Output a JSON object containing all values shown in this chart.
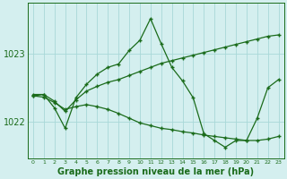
{
  "title": "Graphe pression niveau de la mer (hPa)",
  "x_labels": [
    "0",
    "1",
    "2",
    "3",
    "4",
    "5",
    "6",
    "7",
    "8",
    "9",
    "10",
    "11",
    "12",
    "13",
    "14",
    "15",
    "16",
    "17",
    "18",
    "19",
    "20",
    "21",
    "22",
    "23"
  ],
  "x_values": [
    0,
    1,
    2,
    3,
    4,
    5,
    6,
    7,
    8,
    9,
    10,
    11,
    12,
    13,
    14,
    15,
    16,
    17,
    18,
    19,
    20,
    21,
    22,
    23
  ],
  "line_main": [
    1022.4,
    1022.4,
    1022.2,
    1021.9,
    1022.35,
    1022.55,
    1022.7,
    1022.8,
    1022.85,
    1023.05,
    1023.2,
    1023.52,
    1023.15,
    1022.8,
    1022.6,
    1022.35,
    1021.82,
    1021.72,
    1021.62,
    1021.72,
    1021.72,
    1022.05,
    1022.5,
    1022.62
  ],
  "line_up": [
    1022.38,
    1022.4,
    1022.3,
    1022.15,
    1022.32,
    1022.45,
    1022.52,
    1022.58,
    1022.62,
    1022.68,
    1022.74,
    1022.8,
    1022.86,
    1022.9,
    1022.94,
    1022.98,
    1023.02,
    1023.06,
    1023.1,
    1023.14,
    1023.18,
    1023.22,
    1023.26,
    1023.28
  ],
  "line_down": [
    1022.38,
    1022.36,
    1022.28,
    1022.18,
    1022.22,
    1022.25,
    1022.22,
    1022.18,
    1022.12,
    1022.05,
    1021.98,
    1021.94,
    1021.9,
    1021.88,
    1021.85,
    1021.83,
    1021.8,
    1021.78,
    1021.76,
    1021.74,
    1021.72,
    1021.72,
    1021.74,
    1021.78
  ],
  "line_color": "#1a6b1a",
  "bg_color": "#d4efef",
  "grid_color": "#a8d8d8",
  "yticks": [
    1022,
    1023
  ],
  "ylim": [
    1021.45,
    1023.75
  ],
  "xlim": [
    -0.5,
    23.5
  ],
  "xlabel_fontsize": 7,
  "ytick_fontsize": 7,
  "xtick_fontsize": 4.5
}
